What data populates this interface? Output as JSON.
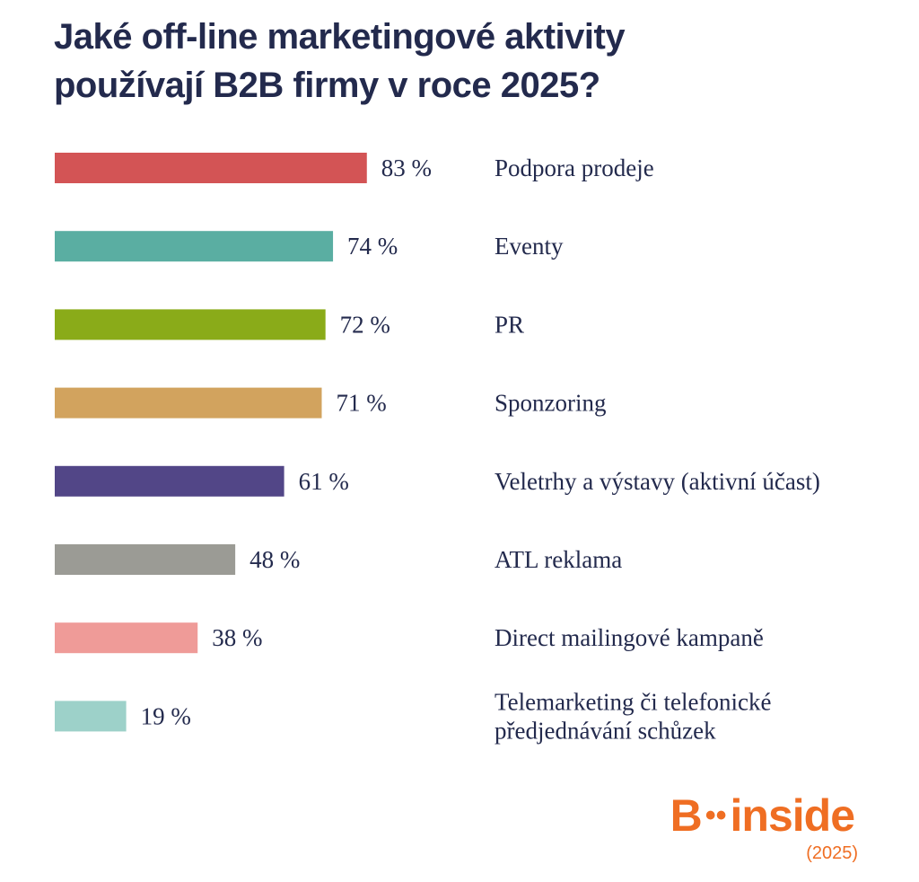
{
  "chart_data": {
    "type": "bar",
    "orientation": "horizontal",
    "title": [
      "Jaké off-line marketingové aktivity",
      "používají B2B firmy v roce 2025?"
    ],
    "categories": [
      [
        "Podpora prodeje"
      ],
      [
        "Eventy"
      ],
      [
        "PR"
      ],
      [
        "Sponzoring"
      ],
      [
        "Veletrhy a výstavy (aktivní účast)"
      ],
      [
        "ATL reklama"
      ],
      [
        "Direct mailingové kampaně"
      ],
      [
        "Telemarketing či telefonické",
        "předjednávání schůzek"
      ]
    ],
    "values": [
      83,
      74,
      72,
      71,
      61,
      48,
      38,
      19
    ],
    "value_labels": [
      "83 %",
      "74 %",
      "72 %",
      "71 %",
      "61 %",
      "48 %",
      "38 %",
      "19 %"
    ],
    "colors": [
      "#d35455",
      "#5aaea2",
      "#8aab19",
      "#d2a35e",
      "#524687",
      "#9b9b95",
      "#ef9b98",
      "#9dd1c9"
    ],
    "xlim": [
      0,
      100
    ],
    "grid": false,
    "legend": "none"
  },
  "logo": {
    "brand_left": "B",
    "brand_dots": "••",
    "brand_right": "inside",
    "year": "(2025)"
  }
}
